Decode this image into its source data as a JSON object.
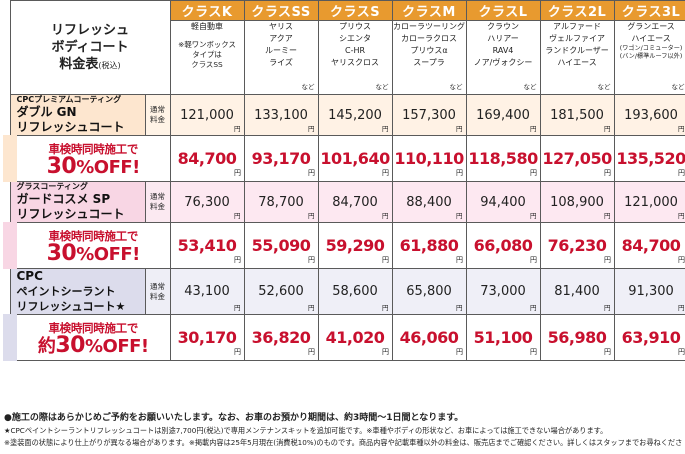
{
  "title": {
    "line1": "リフレッシュ",
    "line2": "ボディコート",
    "line3": "料金表",
    "tax_note": "(税込)"
  },
  "classes": [
    {
      "name": "クラスK",
      "cars": [
        "軽自動車"
      ],
      "note": [
        "※軽ワンボックス",
        "タイプは",
        "クラスSS"
      ],
      "etc": ""
    },
    {
      "name": "クラスSS",
      "cars": [
        "ヤリス",
        "アクア",
        "ルーミー",
        "ライズ"
      ],
      "etc": "など"
    },
    {
      "name": "クラスS",
      "cars": [
        "プリウス",
        "シエンタ",
        "C-HR",
        "ヤリスクロス"
      ],
      "etc": "など"
    },
    {
      "name": "クラスM",
      "cars": [
        "カローラツーリング",
        "カローラクロス",
        "プリウスα",
        "スープラ"
      ],
      "etc": "など"
    },
    {
      "name": "クラスL",
      "cars": [
        "クラウン",
        "ハリアー",
        "RAV4",
        "ノア/ヴォクシー"
      ],
      "etc": "など"
    },
    {
      "name": "クラス2L",
      "cars": [
        "アルファード",
        "ヴェルファイア",
        "ランドクルーザー",
        "ハイエース"
      ],
      "etc": "など"
    },
    {
      "name": "クラス3L",
      "cars": [
        "グランエース",
        "ハイエース"
      ],
      "small": [
        "(ワゴン/コミューター)",
        "(バン/標準ルーフ以外)"
      ],
      "etc": "など"
    }
  ],
  "yen": "円",
  "normal_tag": [
    "通常",
    "料金"
  ],
  "sale_label": {
    "l1": "車検時同時施工で",
    "l2_pre": "",
    "l2_num": "30",
    "l2_post": "%OFF!"
  },
  "products": [
    {
      "sub": "CPCプレミアムコーティング",
      "main1": "ダブル GN",
      "main2": "リフレッシュコート",
      "normal": [
        "121,000",
        "133,100",
        "145,200",
        "157,300",
        "169,400",
        "181,500",
        "193,600"
      ],
      "sale": [
        "84,700",
        "93,170",
        "101,640",
        "110,110",
        "118,580",
        "127,050",
        "135,520"
      ],
      "sale_l1": "車検時同時施工で",
      "sale_l2_pre": "",
      "sale_l2_num": "30",
      "sale_l2_post": "%OFF!"
    },
    {
      "sub": "グラスコーティング",
      "main1": "ガードコスメ SP",
      "main2": "リフレッシュコート",
      "normal": [
        "76,300",
        "78,700",
        "84,700",
        "88,400",
        "94,400",
        "108,900",
        "121,000"
      ],
      "sale": [
        "53,410",
        "55,090",
        "59,290",
        "61,880",
        "66,080",
        "76,230",
        "84,700"
      ],
      "sale_l1": "車検時同時施工で",
      "sale_l2_pre": "",
      "sale_l2_num": "30",
      "sale_l2_post": "%OFF!"
    },
    {
      "sub": "CPC",
      "main1": "ペイントシーラント",
      "main2": "リフレッシュコート★",
      "normal": [
        "43,100",
        "52,600",
        "58,600",
        "65,800",
        "73,000",
        "81,400",
        "91,300"
      ],
      "sale": [
        "30,170",
        "36,820",
        "41,020",
        "46,060",
        "51,100",
        "56,980",
        "63,910"
      ],
      "sale_l1": "車検時同時施工で",
      "sale_l2_pre": "約",
      "sale_l2_num": "30",
      "sale_l2_post": "%OFF!"
    }
  ],
  "notes": [
    "●施工の際はあらかじめご予約をお願いいたします。なお、お車のお預かり期間は、約3時間〜1日間となります。",
    "★CPCペイントシーラントリフレッシュコートは別途7,700円(税込)で専用メンテナンスキットを追加可能です。※車種やボディの形状など、お車によっては施工できない場合があります。",
    "※塗装面の状態により仕上がりが異なる場合があります。※掲載内容は25年5月現在(消費税10%)のものです。商品内容や記載車種以外の料金は、販売店までご確認ください。詳しくはスタッフまでお尋ねください。"
  ],
  "colors": {
    "header_orange": "#e89a2f",
    "sale_red": "#c8102e",
    "product1_bg": "#fde6cf",
    "product2_bg": "#f8d6e4",
    "product3_bg": "#dcdcec"
  }
}
